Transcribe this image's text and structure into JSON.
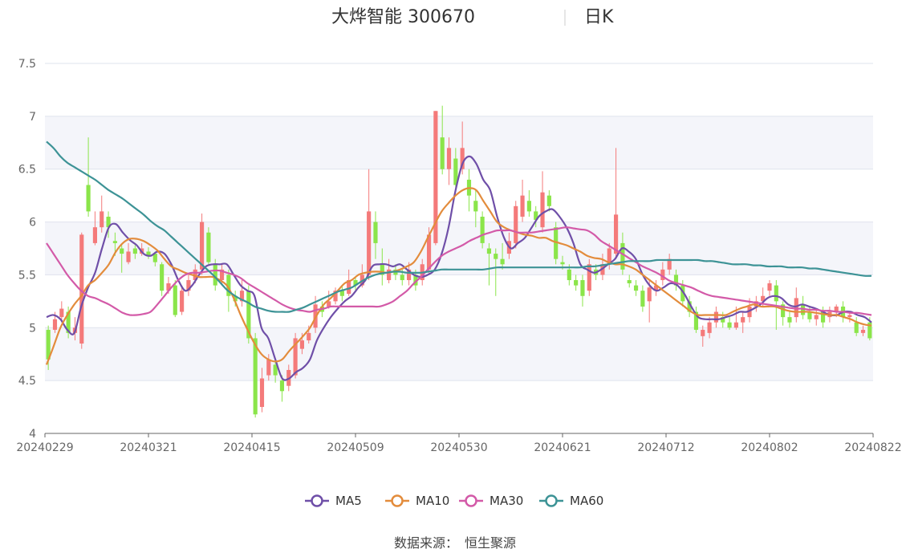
{
  "header": {
    "stock_name": "大烨智能",
    "stock_code": "300670",
    "period": "日K"
  },
  "footer": {
    "source_label": "数据来源：",
    "source_name": "恒生聚源"
  },
  "colors": {
    "up": "#f47a7a",
    "down": "#8be54a",
    "MA5": "#6f4fa8",
    "MA10": "#e38c3c",
    "MA30": "#d35aa8",
    "MA60": "#3d9396",
    "band": "#f4f5fa",
    "grid": "#dfe3ee",
    "axis": "#666666"
  },
  "chart_data": {
    "type": "candlestick",
    "y_axis": {
      "min": 4,
      "max": 7.5,
      "ticks": [
        "4",
        "4.5",
        "5",
        "5.5",
        "6",
        "6.5",
        "7",
        "7.5"
      ]
    },
    "x_tick_labels": [
      "20240229",
      "20240321",
      "20240415",
      "20240509",
      "20240530",
      "20240621",
      "20240712",
      "20240802",
      "20240822"
    ],
    "legend": [
      "MA5",
      "MA10",
      "MA30",
      "MA60"
    ],
    "ohlc": [
      [
        4.98,
        4.7,
        5.02,
        4.6
      ],
      [
        4.98,
        5.08,
        5.15,
        4.95
      ],
      [
        5.1,
        5.18,
        5.25,
        5.05
      ],
      [
        5.15,
        4.95,
        5.2,
        4.9
      ],
      [
        4.95,
        5.0,
        5.1,
        4.88
      ],
      [
        4.85,
        5.88,
        5.9,
        4.8
      ],
      [
        6.35,
        6.1,
        6.8,
        6.05
      ],
      [
        5.8,
        5.95,
        6.1,
        5.78
      ],
      [
        5.95,
        6.1,
        6.25,
        5.9
      ],
      [
        6.05,
        5.95,
        6.1,
        5.85
      ],
      [
        5.82,
        5.8,
        5.9,
        5.68
      ],
      [
        5.75,
        5.7,
        5.78,
        5.52
      ],
      [
        5.62,
        5.72,
        5.8,
        5.6
      ],
      [
        5.75,
        5.7,
        5.78,
        5.65
      ],
      [
        5.7,
        5.75,
        5.8,
        5.68
      ],
      [
        5.72,
        5.68,
        5.76,
        5.65
      ],
      [
        5.7,
        5.62,
        5.72,
        5.58
      ],
      [
        5.6,
        5.35,
        5.62,
        5.3
      ],
      [
        5.35,
        5.42,
        5.48,
        5.32
      ],
      [
        5.4,
        5.12,
        5.45,
        5.1
      ],
      [
        5.15,
        5.35,
        5.4,
        5.12
      ],
      [
        5.35,
        5.45,
        5.5,
        5.3
      ],
      [
        5.45,
        5.55,
        5.6,
        5.42
      ],
      [
        5.55,
        6.0,
        6.08,
        5.5
      ],
      [
        5.9,
        5.62,
        5.95,
        5.6
      ],
      [
        5.6,
        5.4,
        5.65,
        5.35
      ],
      [
        5.45,
        5.55,
        5.6,
        5.4
      ],
      [
        5.5,
        5.3,
        5.55,
        5.15
      ],
      [
        5.3,
        5.25,
        5.35,
        5.2
      ],
      [
        5.25,
        5.35,
        5.45,
        5.2
      ],
      [
        5.35,
        4.9,
        5.4,
        4.85
      ],
      [
        4.9,
        4.18,
        4.95,
        4.15
      ],
      [
        4.25,
        4.52,
        4.62,
        4.2
      ],
      [
        4.55,
        4.7,
        4.75,
        4.5
      ],
      [
        4.65,
        4.55,
        4.7,
        4.48
      ],
      [
        4.5,
        4.4,
        4.55,
        4.3
      ],
      [
        4.45,
        4.6,
        4.65,
        4.4
      ],
      [
        4.55,
        4.9,
        4.95,
        4.52
      ],
      [
        4.8,
        4.88,
        4.95,
        4.75
      ],
      [
        4.88,
        4.95,
        5.02,
        4.85
      ],
      [
        5.0,
        5.22,
        5.3,
        4.95
      ],
      [
        5.2,
        5.15,
        5.25,
        5.1
      ],
      [
        5.2,
        5.25,
        5.35,
        5.18
      ],
      [
        5.25,
        5.35,
        5.38,
        5.22
      ],
      [
        5.35,
        5.3,
        5.4,
        5.25
      ],
      [
        5.32,
        5.45,
        5.55,
        5.3
      ],
      [
        5.45,
        5.4,
        5.48,
        5.35
      ],
      [
        5.4,
        5.5,
        5.6,
        5.38
      ],
      [
        5.5,
        6.1,
        6.5,
        5.45
      ],
      [
        6.0,
        5.8,
        6.1,
        5.65
      ],
      [
        5.6,
        5.5,
        5.75,
        5.4
      ],
      [
        5.45,
        5.55,
        5.65,
        5.42
      ],
      [
        5.55,
        5.5,
        5.6,
        5.45
      ],
      [
        5.5,
        5.45,
        5.55,
        5.4
      ],
      [
        5.45,
        5.55,
        5.62,
        5.4
      ],
      [
        5.5,
        5.4,
        5.55,
        5.35
      ],
      [
        5.45,
        5.6,
        5.65,
        5.4
      ],
      [
        5.55,
        5.88,
        5.95,
        5.5
      ],
      [
        5.8,
        7.05,
        7.05,
        5.78
      ],
      [
        6.8,
        6.5,
        7.1,
        6.45
      ],
      [
        6.5,
        6.7,
        6.8,
        6.35
      ],
      [
        6.6,
        6.35,
        6.7,
        6.3
      ],
      [
        6.5,
        6.7,
        6.95,
        6.45
      ],
      [
        6.4,
        6.25,
        6.5,
        6.1
      ],
      [
        6.2,
        6.1,
        6.3,
        5.95
      ],
      [
        6.05,
        5.8,
        6.1,
        5.75
      ],
      [
        5.75,
        5.7,
        5.8,
        5.4
      ],
      [
        5.7,
        5.65,
        5.75,
        5.3
      ],
      [
        5.65,
        5.6,
        5.8,
        5.55
      ],
      [
        5.7,
        5.82,
        5.9,
        5.65
      ],
      [
        5.8,
        6.15,
        6.2,
        5.75
      ],
      [
        6.05,
        6.25,
        6.4,
        6.0
      ],
      [
        6.2,
        6.1,
        6.3,
        6.05
      ],
      [
        6.1,
        6.02,
        6.15,
        5.95
      ],
      [
        5.95,
        6.28,
        6.48,
        5.9
      ],
      [
        6.25,
        6.15,
        6.3,
        6.1
      ],
      [
        5.95,
        5.65,
        6.0,
        5.6
      ],
      [
        5.62,
        5.6,
        5.68,
        5.55
      ],
      [
        5.55,
        5.45,
        5.6,
        5.4
      ],
      [
        5.45,
        5.4,
        5.5,
        5.35
      ],
      [
        5.45,
        5.3,
        5.5,
        5.2
      ],
      [
        5.35,
        5.6,
        5.65,
        5.3
      ],
      [
        5.55,
        5.5,
        5.6,
        5.45
      ],
      [
        5.5,
        5.6,
        5.7,
        5.45
      ],
      [
        5.6,
        5.75,
        5.8,
        5.55
      ],
      [
        5.7,
        6.07,
        6.7,
        5.65
      ],
      [
        5.8,
        5.55,
        5.9,
        5.5
      ],
      [
        5.45,
        5.42,
        5.5,
        5.38
      ],
      [
        5.4,
        5.35,
        5.45,
        5.3
      ],
      [
        5.35,
        5.2,
        5.4,
        5.15
      ],
      [
        5.25,
        5.38,
        5.45,
        5.05
      ],
      [
        5.35,
        5.4,
        5.45,
        5.3
      ],
      [
        5.45,
        5.55,
        5.62,
        5.4
      ],
      [
        5.55,
        5.65,
        5.7,
        5.5
      ],
      [
        5.5,
        5.4,
        5.55,
        5.35
      ],
      [
        5.4,
        5.25,
        5.45,
        5.2
      ],
      [
        5.25,
        5.15,
        5.3,
        5.1
      ],
      [
        5.15,
        4.98,
        5.2,
        4.95
      ],
      [
        4.92,
        4.98,
        5.02,
        4.82
      ],
      [
        4.95,
        5.05,
        5.1,
        4.9
      ],
      [
        5.05,
        5.15,
        5.2,
        5.0
      ],
      [
        5.1,
        5.05,
        5.15,
        5.0
      ],
      [
        5.05,
        5.0,
        5.1,
        4.98
      ],
      [
        5.0,
        5.05,
        5.2,
        4.98
      ],
      [
        5.05,
        5.1,
        5.15,
        4.95
      ],
      [
        5.1,
        5.2,
        5.28,
        5.05
      ],
      [
        5.2,
        5.25,
        5.3,
        5.15
      ],
      [
        5.25,
        5.3,
        5.38,
        5.2
      ],
      [
        5.35,
        5.42,
        5.45,
        5.3
      ],
      [
        5.4,
        5.25,
        5.45,
        4.98
      ],
      [
        5.22,
        5.1,
        5.25,
        5.02
      ],
      [
        5.1,
        5.05,
        5.15,
        5.0
      ],
      [
        5.1,
        5.28,
        5.38,
        5.05
      ],
      [
        5.22,
        5.12,
        5.3,
        5.08
      ],
      [
        5.15,
        5.08,
        5.2,
        5.05
      ],
      [
        5.08,
        5.12,
        5.18,
        5.02
      ],
      [
        5.15,
        5.05,
        5.2,
        5.0
      ],
      [
        5.1,
        5.15,
        5.2,
        5.05
      ],
      [
        5.15,
        5.2,
        5.22,
        5.1
      ],
      [
        5.2,
        5.1,
        5.25,
        5.05
      ],
      [
        5.1,
        5.12,
        5.15,
        5.05
      ],
      [
        5.05,
        4.95,
        5.1,
        4.92
      ],
      [
        4.95,
        4.98,
        5.02,
        4.92
      ],
      [
        5.05,
        4.9,
        5.1,
        4.88
      ]
    ],
    "series": [
      {
        "name": "MA5",
        "values": [
          5.1,
          5.12,
          5.08,
          4.98,
          4.95,
          5.2,
          5.38,
          5.52,
          5.75,
          5.95,
          5.98,
          5.9,
          5.83,
          5.78,
          5.7,
          5.68,
          5.72,
          5.7,
          5.6,
          5.45,
          5.35,
          5.4,
          5.5,
          5.58,
          5.6,
          5.6,
          5.6,
          5.5,
          5.4,
          5.35,
          5.3,
          5.0,
          4.9,
          4.7,
          4.52,
          4.52,
          4.58,
          4.62,
          4.7,
          4.88,
          5.0,
          5.1,
          5.18,
          5.25,
          5.3,
          5.38,
          5.45,
          5.58,
          5.6,
          5.6,
          5.58,
          5.6,
          5.55,
          5.5,
          5.48,
          5.5,
          5.55,
          5.7,
          5.95,
          6.3,
          6.55,
          6.62,
          6.55,
          6.4,
          6.3,
          6.05,
          5.85,
          5.75,
          5.8,
          5.85,
          5.95,
          6.05,
          6.1,
          6.12,
          6.05,
          5.95,
          5.8,
          5.6,
          5.55,
          5.52,
          5.55,
          5.6,
          5.65,
          5.75,
          5.72,
          5.65,
          5.5,
          5.4,
          5.35,
          5.38,
          5.42,
          5.4,
          5.32,
          5.2,
          5.1,
          5.08,
          5.08,
          5.08,
          5.1,
          5.12,
          5.15,
          5.15,
          5.18,
          5.22,
          5.28,
          5.3,
          5.28,
          5.22,
          5.2,
          5.22,
          5.2,
          5.18,
          5.15,
          5.12,
          5.12,
          5.15,
          5.15,
          5.12,
          5.1,
          5.05
        ]
      },
      {
        "name": "MA10",
        "values": [
          4.65,
          4.82,
          5.0,
          5.12,
          5.22,
          5.3,
          5.4,
          5.45,
          5.52,
          5.6,
          5.72,
          5.8,
          5.84,
          5.84,
          5.82,
          5.78,
          5.73,
          5.65,
          5.58,
          5.55,
          5.52,
          5.5,
          5.48,
          5.48,
          5.48,
          5.45,
          5.4,
          5.28,
          5.12,
          4.98,
          4.85,
          4.75,
          4.7,
          4.68,
          4.7,
          4.78,
          4.85,
          4.92,
          5.0,
          5.12,
          5.22,
          5.28,
          5.35,
          5.42,
          5.45,
          5.5,
          5.52,
          5.53,
          5.53,
          5.52,
          5.53,
          5.55,
          5.58,
          5.62,
          5.72,
          5.85,
          5.98,
          6.1,
          6.18,
          6.25,
          6.3,
          6.32,
          6.3,
          6.2,
          6.1,
          6.0,
          5.95,
          5.92,
          5.9,
          5.88,
          5.87,
          5.85,
          5.85,
          5.82,
          5.8,
          5.78,
          5.75,
          5.72,
          5.68,
          5.66,
          5.65,
          5.62,
          5.6,
          5.6,
          5.58,
          5.55,
          5.5,
          5.45,
          5.4,
          5.35,
          5.3,
          5.25,
          5.2,
          5.15,
          5.12,
          5.12,
          5.12,
          5.12,
          5.12,
          5.15,
          5.18,
          5.2,
          5.22,
          5.2,
          5.2,
          5.2,
          5.18,
          5.16,
          5.15,
          5.15,
          5.15,
          5.14,
          5.13,
          5.12,
          5.12,
          5.1,
          5.08,
          5.05,
          5.03,
          5.02
        ]
      },
      {
        "name": "MA30",
        "values": [
          5.8,
          5.7,
          5.6,
          5.5,
          5.42,
          5.35,
          5.3,
          5.28,
          5.25,
          5.22,
          5.18,
          5.14,
          5.12,
          5.12,
          5.13,
          5.15,
          5.22,
          5.3,
          5.38,
          5.45,
          5.5,
          5.52,
          5.52,
          5.53,
          5.54,
          5.54,
          5.52,
          5.5,
          5.47,
          5.42,
          5.38,
          5.34,
          5.3,
          5.26,
          5.22,
          5.19,
          5.17,
          5.16,
          5.15,
          5.17,
          5.18,
          5.2,
          5.2,
          5.2,
          5.2,
          5.2,
          5.2,
          5.2,
          5.2,
          5.22,
          5.25,
          5.3,
          5.35,
          5.42,
          5.48,
          5.55,
          5.62,
          5.68,
          5.72,
          5.75,
          5.78,
          5.82,
          5.85,
          5.88,
          5.9,
          5.92,
          5.92,
          5.92,
          5.9,
          5.9,
          5.9,
          5.91,
          5.92,
          5.93,
          5.94,
          5.95,
          5.94,
          5.93,
          5.92,
          5.88,
          5.82,
          5.78,
          5.74,
          5.7,
          5.66,
          5.62,
          5.58,
          5.55,
          5.52,
          5.48,
          5.44,
          5.42,
          5.4,
          5.38,
          5.35,
          5.32,
          5.3,
          5.29,
          5.28,
          5.27,
          5.26,
          5.25,
          5.24,
          5.23,
          5.22,
          5.21,
          5.2,
          5.19,
          5.18,
          5.18,
          5.17,
          5.17,
          5.16,
          5.16,
          5.15,
          5.15,
          5.14,
          5.14,
          5.13,
          5.12
        ]
      },
      {
        "name": "MA60",
        "values": [
          6.76,
          6.7,
          6.62,
          6.56,
          6.52,
          6.48,
          6.44,
          6.4,
          6.35,
          6.3,
          6.26,
          6.22,
          6.17,
          6.12,
          6.07,
          6.01,
          5.96,
          5.92,
          5.86,
          5.8,
          5.74,
          5.68,
          5.62,
          5.56,
          5.5,
          5.43,
          5.36,
          5.31,
          5.27,
          5.24,
          5.2,
          5.18,
          5.16,
          5.15,
          5.15,
          5.15,
          5.17,
          5.19,
          5.22,
          5.25,
          5.28,
          5.31,
          5.34,
          5.36,
          5.38,
          5.42,
          5.46,
          5.49,
          5.51,
          5.52,
          5.53,
          5.53,
          5.52,
          5.52,
          5.52,
          5.53,
          5.54,
          5.55,
          5.55,
          5.55,
          5.55,
          5.55,
          5.55,
          5.55,
          5.56,
          5.57,
          5.57,
          5.57,
          5.57,
          5.57,
          5.57,
          5.57,
          5.57,
          5.57,
          5.57,
          5.57,
          5.57,
          5.57,
          5.58,
          5.58,
          5.59,
          5.6,
          5.61,
          5.62,
          5.63,
          5.63,
          5.63,
          5.63,
          5.64,
          5.64,
          5.64,
          5.64,
          5.64,
          5.64,
          5.64,
          5.63,
          5.63,
          5.62,
          5.61,
          5.6,
          5.6,
          5.6,
          5.59,
          5.59,
          5.58,
          5.58,
          5.58,
          5.57,
          5.57,
          5.57,
          5.56,
          5.56,
          5.55,
          5.54,
          5.53,
          5.52,
          5.51,
          5.5,
          5.49,
          5.49
        ]
      }
    ]
  }
}
